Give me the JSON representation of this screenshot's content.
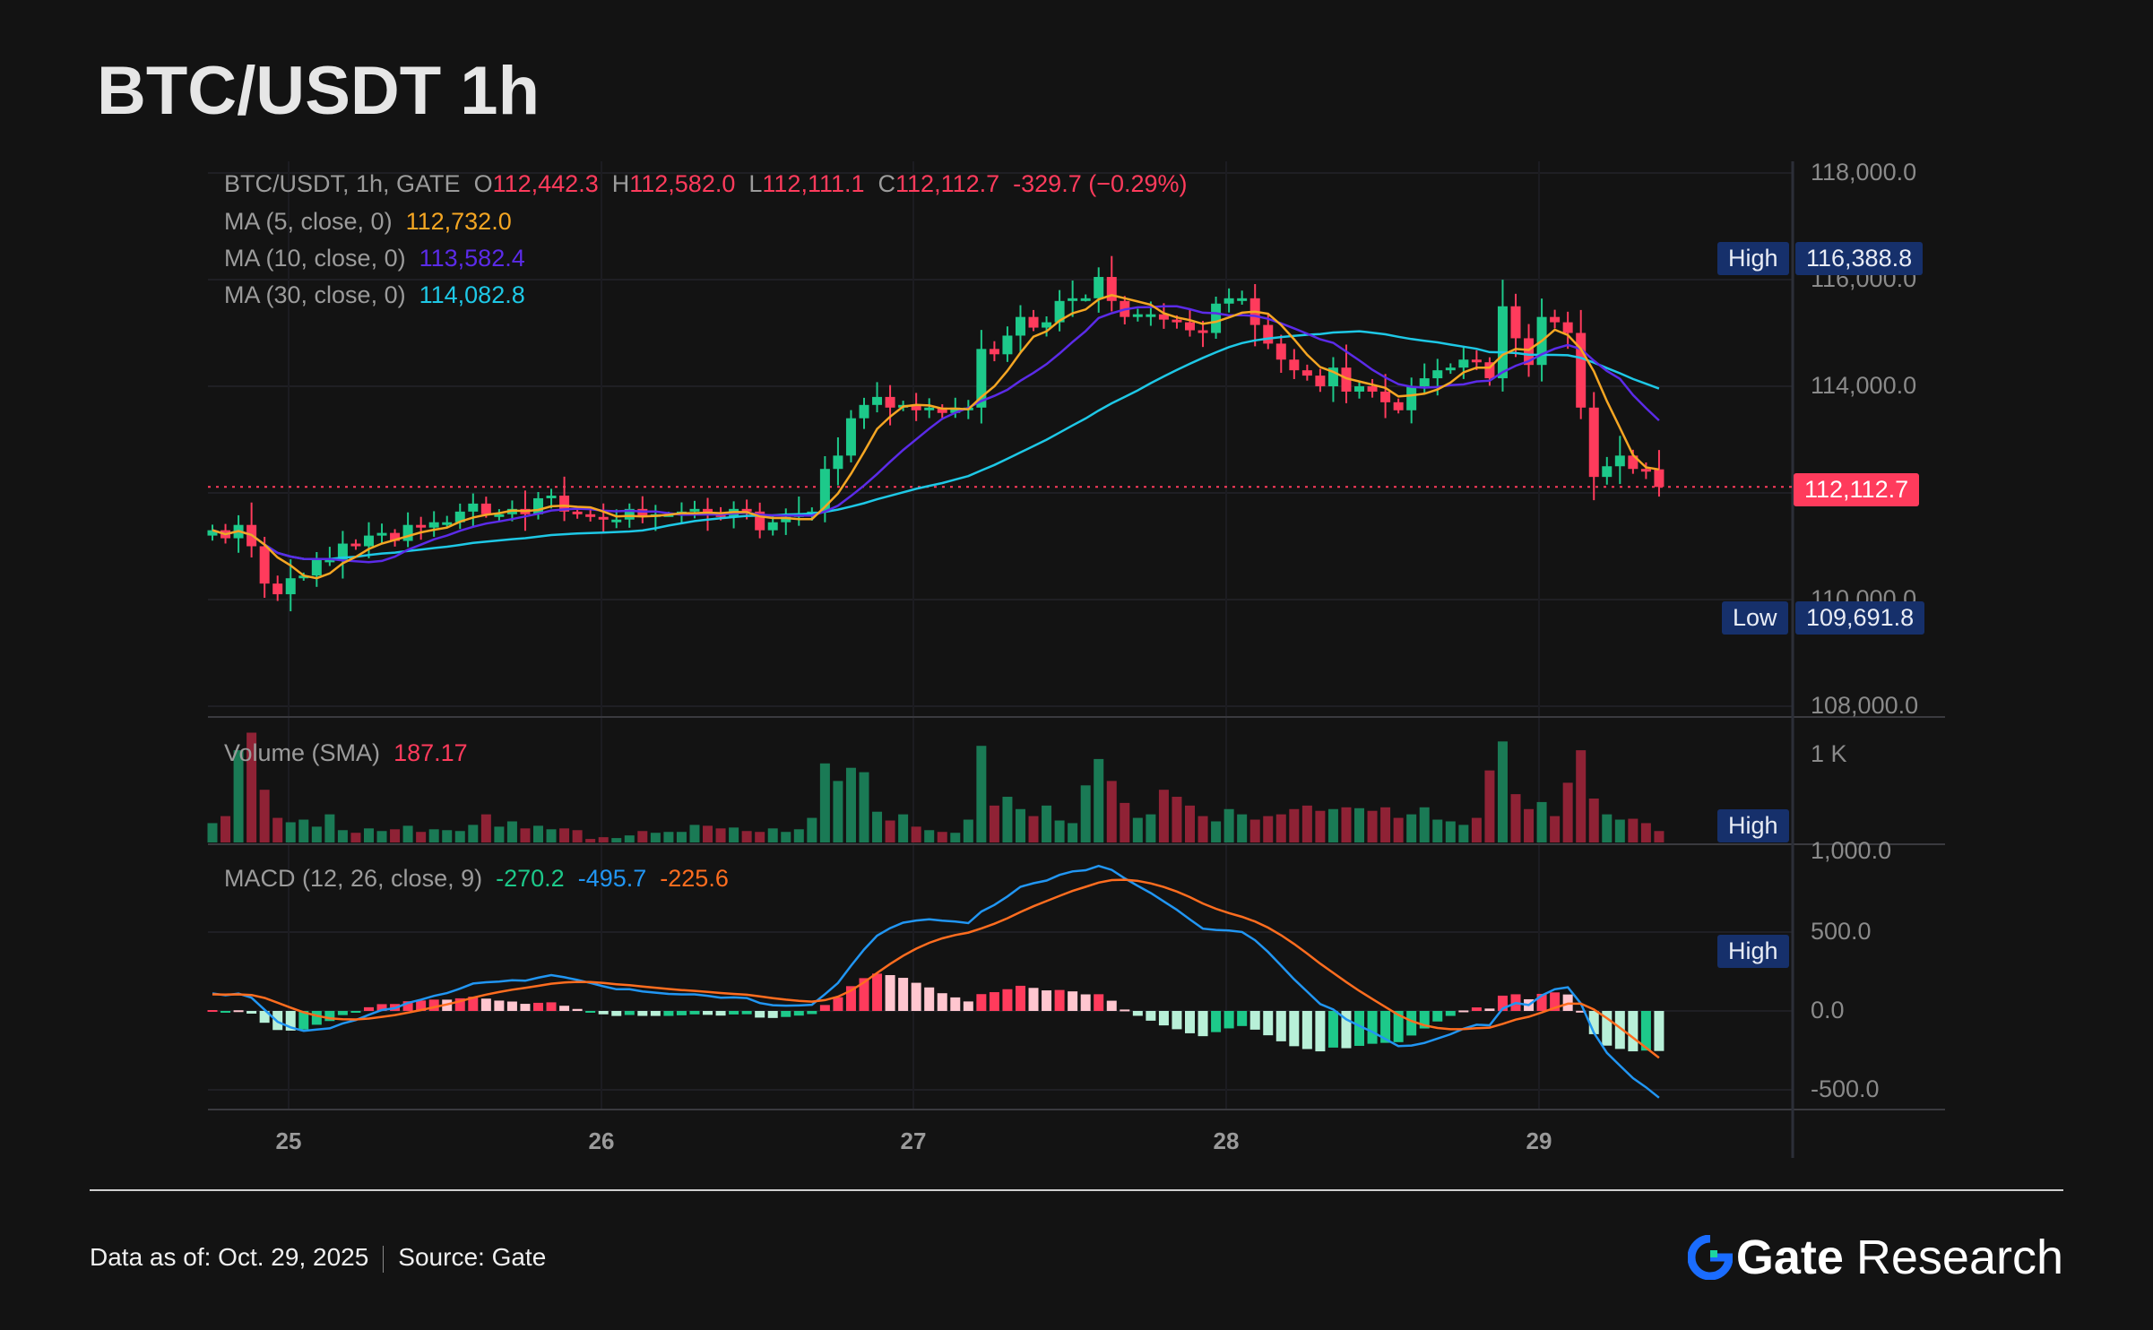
{
  "title": "BTC/USDT 1h",
  "legend": {
    "symbol": "BTC/USDT, 1h, GATE",
    "o_label": "O",
    "o": "112,442.3",
    "h_label": "H",
    "h": "112,582.0",
    "l_label": "L",
    "l": "112,111.1",
    "c_label": "C",
    "c": "112,112.7",
    "change": "-329.7 (−0.29%)",
    "ma5_label": "MA (5, close, 0)",
    "ma5": "112,732.0",
    "ma10_label": "MA (10, close, 0)",
    "ma10": "113,582.4",
    "ma30_label": "MA (30, close, 0)",
    "ma30": "114,082.8",
    "volume_label": "Volume (SMA)",
    "volume": "187.17",
    "macd_label": "MACD (12, 26, close, 9)",
    "macd_hist": "-270.2",
    "macd_line": "-495.7",
    "macd_signal": "-225.6"
  },
  "axis": {
    "price_ticks": [
      "118,000.0",
      "116,000.0",
      "114,000.0",
      "110,000.0",
      "108,000.0"
    ],
    "volume_ticks": [
      "1 K",
      "1,000.0"
    ],
    "macd_ticks": [
      "500.0",
      "0.0",
      "-500.0"
    ],
    "high_label": "High",
    "high_value": "116,388.8",
    "low_label": "Low",
    "low_value": "109,691.8",
    "last_price": "112,112.7",
    "volume_high_label": "High",
    "macd_high_label": "High",
    "x_ticks": [
      "25",
      "26",
      "27",
      "28",
      "29"
    ]
  },
  "footer": {
    "data_as_of": "Data as of: Oct. 29, 2025",
    "source": "Source:  Gate",
    "brand": "Gate",
    "brand_suffix": "Research"
  },
  "colors": {
    "up": "#1dc98a",
    "down": "#ff3b5c",
    "ma5": "#f5a623",
    "ma10": "#5b2be8",
    "ma30": "#1ec8e6",
    "macd": "#2196f3",
    "signal": "#ff6d1f",
    "vol_up": "#1a7a55",
    "vol_down": "#8f2235"
  },
  "chart_data": {
    "type": "candlestick",
    "title": "BTC/USDT 1h",
    "interval": "1h",
    "first_open": 111200,
    "close": [
      111300,
      111150,
      111400,
      111000,
      110300,
      110100,
      110400,
      110450,
      110750,
      110750,
      111050,
      111000,
      111200,
      111250,
      111100,
      111400,
      111350,
      111450,
      111450,
      111650,
      111800,
      111600,
      111600,
      111700,
      111600,
      111900,
      111950,
      111650,
      111600,
      111550,
      111500,
      111500,
      111700,
      111550,
      111600,
      111600,
      111650,
      111700,
      111600,
      111550,
      111700,
      111650,
      111300,
      111450,
      111550,
      111600,
      111650,
      112450,
      112700,
      113400,
      113650,
      113800,
      113600,
      113650,
      113550,
      113600,
      113500,
      113600,
      113600,
      114700,
      114600,
      114950,
      115300,
      115100,
      115200,
      115600,
      115650,
      115650,
      116050,
      115600,
      115300,
      115350,
      115350,
      115250,
      115200,
      115050,
      115000,
      115550,
      115650,
      115650,
      115150,
      114800,
      114500,
      114300,
      114200,
      114000,
      114350,
      113900,
      114000,
      113900,
      113700,
      113550,
      114000,
      114150,
      114300,
      114350,
      114500,
      114450,
      114150,
      115500,
      114900,
      114400,
      115300,
      115200,
      115000,
      113600,
      112300,
      112500,
      112700,
      112450,
      112442.3,
      112112.7
    ],
    "volume": [
      220,
      300,
      1050,
      1250,
      600,
      280,
      230,
      260,
      180,
      320,
      140,
      110,
      160,
      130,
      150,
      190,
      120,
      150,
      140,
      130,
      200,
      320,
      180,
      240,
      160,
      190,
      150,
      160,
      140,
      40,
      60,
      50,
      80,
      130,
      110,
      120,
      120,
      200,
      190,
      160,
      170,
      130,
      120,
      160,
      120,
      150,
      280,
      900,
      700,
      850,
      800,
      350,
      250,
      320,
      180,
      140,
      120,
      110,
      260,
      1100,
      420,
      520,
      380,
      300,
      420,
      250,
      220,
      650,
      950,
      700,
      450,
      280,
      320,
      600,
      520,
      420,
      300,
      240,
      380,
      320,
      260,
      300,
      320,
      380,
      420,
      360,
      380,
      400,
      390,
      360,
      400,
      280,
      320,
      400,
      260,
      240,
      200,
      280,
      820,
      1150,
      550,
      380,
      460,
      300,
      680,
      1050,
      500,
      320,
      260,
      270,
      220,
      130
    ],
    "ylim": [
      108000,
      118000
    ],
    "x_day_labels": [
      "25",
      "26",
      "27",
      "28",
      "29"
    ],
    "series": [
      "MA5",
      "MA10",
      "MA30"
    ],
    "macd_params": [
      12,
      26,
      9
    ],
    "macd_ylim": [
      -500,
      500
    ],
    "volume_tick": 1000
  }
}
